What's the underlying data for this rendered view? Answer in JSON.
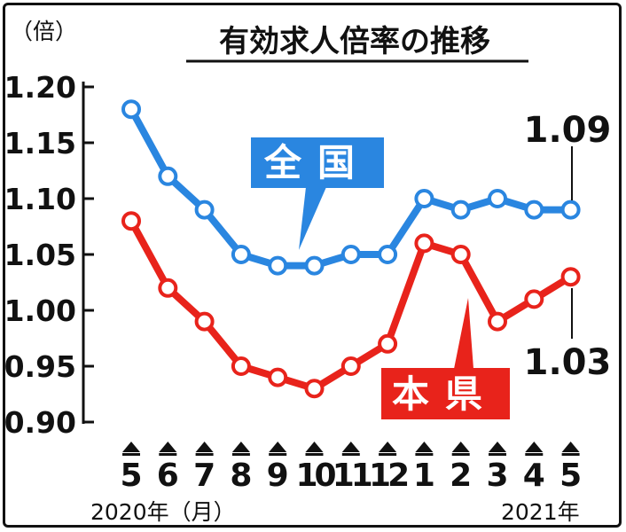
{
  "chart_data": {
    "type": "line",
    "title": "有効求人倍率の推移",
    "unit_label": "（倍）",
    "categories": [
      "5",
      "6",
      "7",
      "8",
      "9",
      "10",
      "11",
      "12",
      "1",
      "2",
      "3",
      "4",
      "5"
    ],
    "year_start_label": "2020年（月）",
    "year_end_label": "2021年",
    "ylim": [
      0.9,
      1.2
    ],
    "yticks": [
      "1.20",
      "1.15",
      "1.10",
      "1.05",
      "1.00",
      "0.95",
      "0.90"
    ],
    "grid": false,
    "series": [
      {
        "name": "全国",
        "color": "#2a86e0",
        "values": [
          1.18,
          1.12,
          1.09,
          1.05,
          1.04,
          1.04,
          1.05,
          1.05,
          1.1,
          1.09,
          1.1,
          1.09,
          1.09
        ],
        "end_label": "1.09"
      },
      {
        "name": "本県",
        "color": "#e8231b",
        "values": [
          1.08,
          1.02,
          0.99,
          0.95,
          0.94,
          0.93,
          0.95,
          0.97,
          1.06,
          1.05,
          0.99,
          1.01,
          1.03
        ],
        "end_label": "1.03"
      }
    ]
  }
}
